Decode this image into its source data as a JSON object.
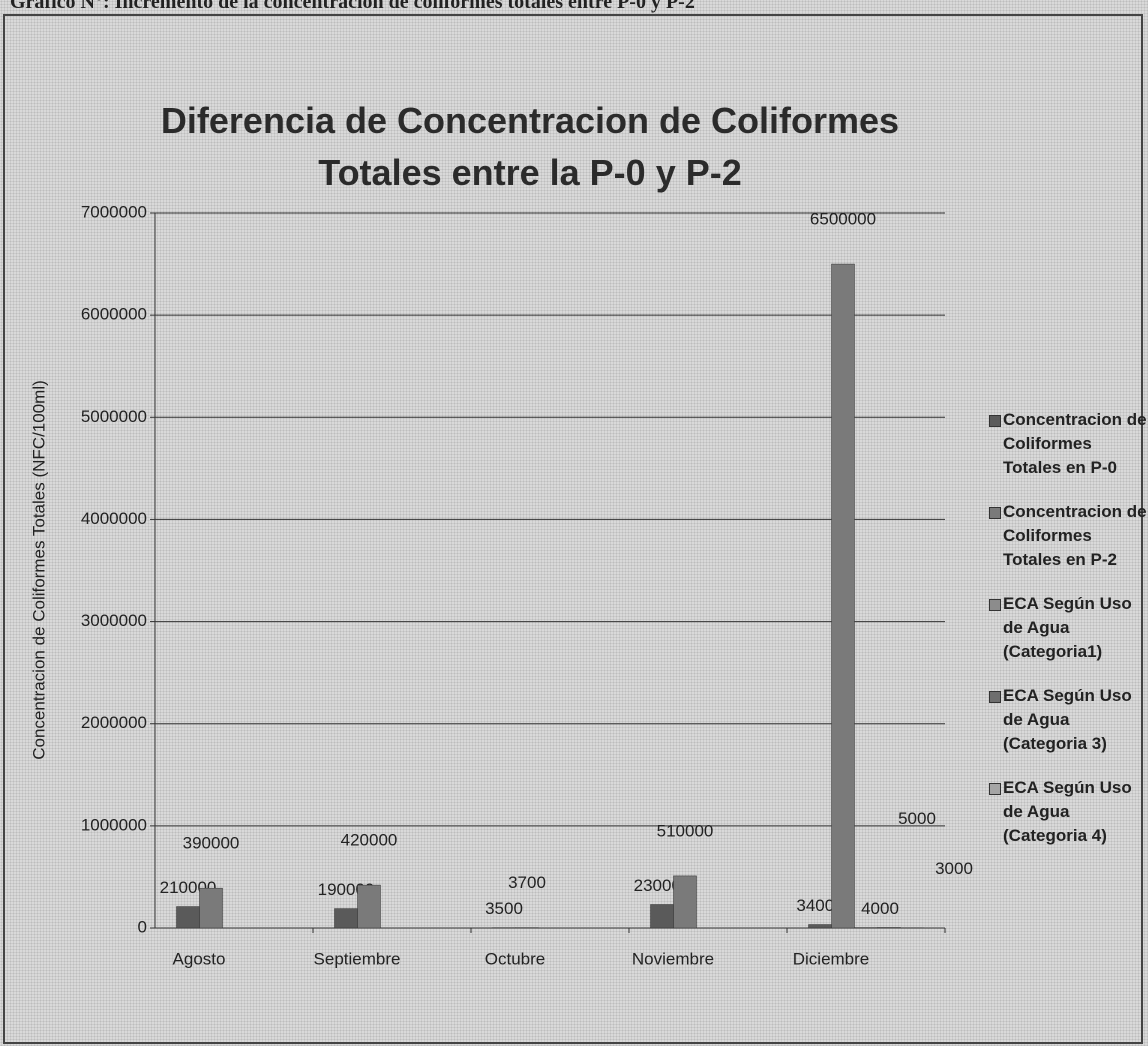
{
  "caption": "Gráfico N°: Incremento de la concentración de coliformes totales entre P-0 y P-2",
  "chart_data": {
    "type": "bar",
    "title": "Diferencia de Concentracion de Coliformes Totales entre la P-0 y P-2",
    "y_label": "Concentracion de Coliformes Totales (NFC/100ml)",
    "categories": [
      "Agosto",
      "Septiembre",
      "Octubre",
      "Noviembre",
      "Diciembre"
    ],
    "series": [
      {
        "name": "Concentracion de Coliformes Totales en P-0",
        "color": "#5a5a5a",
        "values": [
          210000,
          190000,
          3500,
          230000,
          34000
        ]
      },
      {
        "name": "Concentracion de Coliformes Totales en P-2",
        "color": "#7a7a7a",
        "values": [
          390000,
          420000,
          3700,
          510000,
          6500000
        ]
      },
      {
        "name": "ECA Según Uso de Agua (Categoria1)",
        "color": "#8c8c8c",
        "values": [
          null,
          null,
          null,
          null,
          4000
        ]
      },
      {
        "name": "ECA Según Uso de Agua (Categoria 3)",
        "color": "#6e6e6e",
        "values": [
          null,
          null,
          null,
          null,
          5000
        ]
      },
      {
        "name": "ECA Según Uso de Agua (Categoria 4)",
        "color": "#a5a5a5",
        "values": [
          null,
          null,
          null,
          null,
          3000
        ]
      }
    ],
    "ylim": [
      0,
      7000000
    ],
    "yticks": [
      0,
      1000000,
      2000000,
      3000000,
      4000000,
      5000000,
      6000000,
      7000000
    ],
    "grid": true,
    "legend": "right"
  }
}
